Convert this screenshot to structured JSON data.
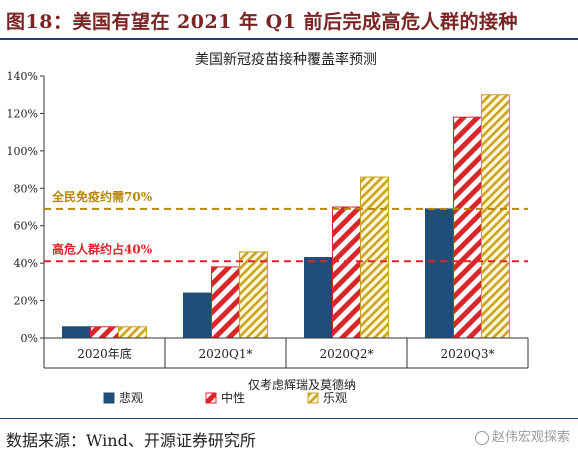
{
  "header": {
    "title": "图18：美国有望在 2021 年 Q1 前后完成高危人群的接种"
  },
  "footer": {
    "source": "数据来源：Wind、开源证券研究所",
    "watermark": "赵伟宏观探索"
  },
  "colors": {
    "pessimistic": "#1f4e79",
    "neutral": "#d9262b",
    "optimistic": "#c9a227",
    "ref_herd": "#b8860b",
    "ref_risk": "#e0242a"
  },
  "chart_data": {
    "type": "bar",
    "title": "美国新冠疫苗接种覆盖率预测",
    "categories": [
      "2020年底",
      "2020Q1*",
      "2020Q2*",
      "2020Q3*"
    ],
    "series": [
      {
        "name": "悲观",
        "values": [
          6,
          24,
          43,
          69
        ]
      },
      {
        "name": "中性",
        "values": [
          6,
          38,
          70,
          118
        ]
      },
      {
        "name": "乐观",
        "values": [
          6,
          46,
          86,
          130
        ]
      }
    ],
    "y_ticks": [
      "0%",
      "20%",
      "40%",
      "60%",
      "80%",
      "100%",
      "120%",
      "140%"
    ],
    "ylim": [
      0,
      140
    ],
    "annotation": "仅考虑辉瑞及莫德纳",
    "reference_lines": [
      {
        "label": "全民免疫约需70%",
        "value": 69
      },
      {
        "label": "高危人群约占40%",
        "value": 41
      }
    ],
    "legend_position": "bottom"
  }
}
